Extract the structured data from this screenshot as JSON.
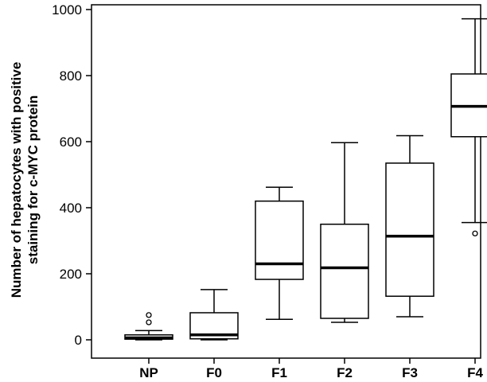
{
  "chart_data": {
    "type": "boxplot",
    "title": "",
    "xlabel": "",
    "ylabel_lines": [
      "Number of hepatocytes with positive",
      "staining for c-MYC protein"
    ],
    "ylim": [
      0,
      1000
    ],
    "yticks": [
      0,
      200,
      400,
      600,
      800,
      1000
    ],
    "grid": false,
    "categories": [
      "NP",
      "F0",
      "F1",
      "F2",
      "F3",
      "F4"
    ],
    "boxes": [
      {
        "category": "NP",
        "whisker_low": 0,
        "q1": 2,
        "median": 6,
        "q3": 15,
        "whisker_high": 28,
        "outliers": [
          53,
          75
        ]
      },
      {
        "category": "F0",
        "whisker_low": 0,
        "q1": 3,
        "median": 15,
        "q3": 82,
        "whisker_high": 152,
        "outliers": []
      },
      {
        "category": "F1",
        "whisker_low": 62,
        "q1": 183,
        "median": 230,
        "q3": 420,
        "whisker_high": 462,
        "outliers": []
      },
      {
        "category": "F2",
        "whisker_low": 53,
        "q1": 65,
        "median": 218,
        "q3": 350,
        "whisker_high": 597,
        "outliers": []
      },
      {
        "category": "F3",
        "whisker_low": 70,
        "q1": 132,
        "median": 314,
        "q3": 535,
        "whisker_high": 618,
        "outliers": []
      },
      {
        "category": "F4",
        "whisker_low": 355,
        "q1": 615,
        "median": 707,
        "q3": 805,
        "whisker_high": 972,
        "outliers": [
          322
        ]
      }
    ]
  }
}
